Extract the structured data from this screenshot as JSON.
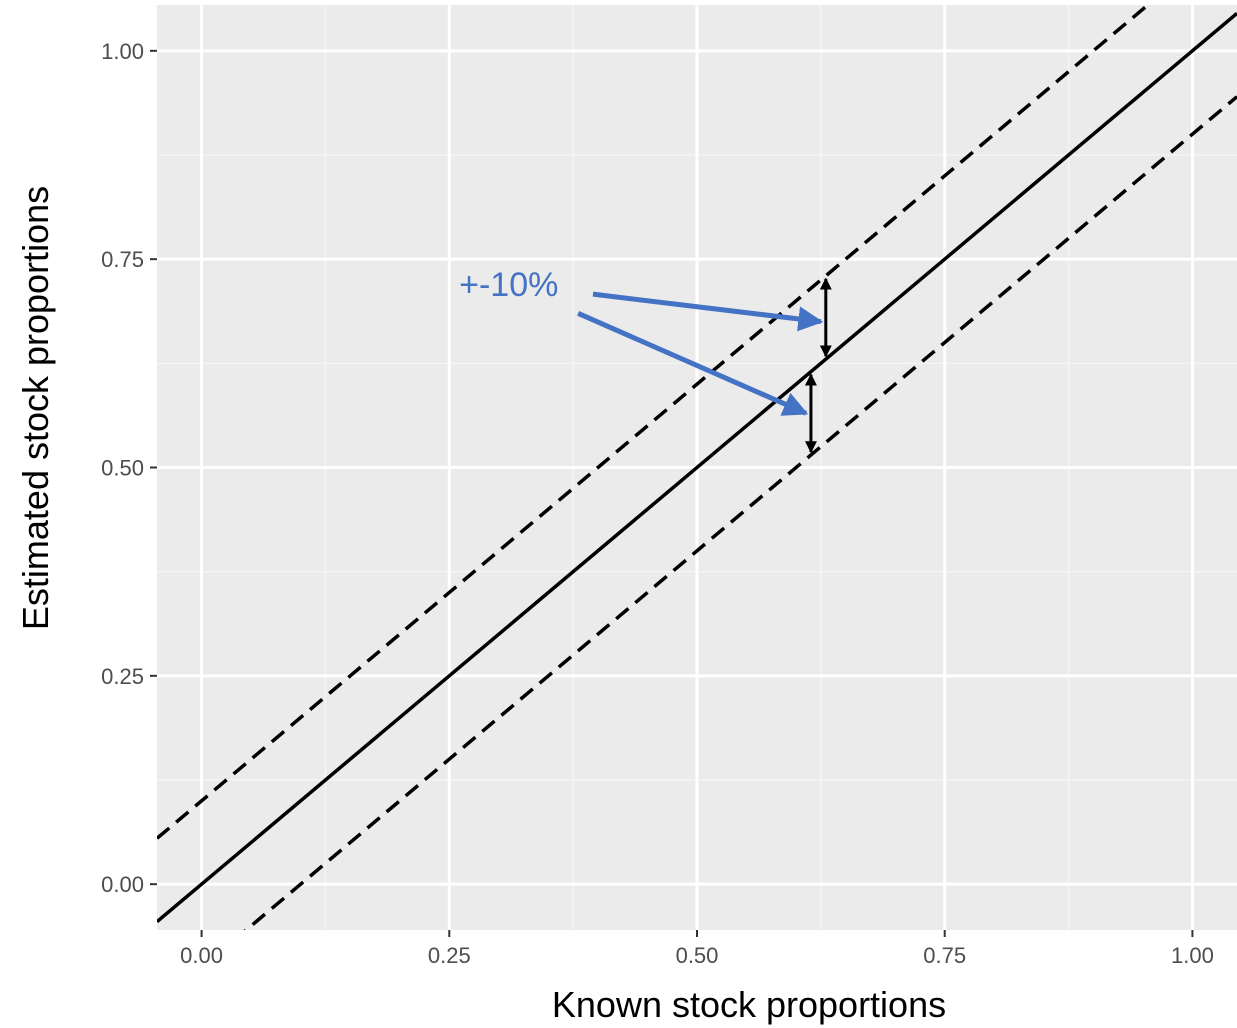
{
  "chart_data": {
    "type": "line",
    "title": "",
    "xlabel": "Known stock proportions",
    "ylabel": "Estimated stock proportions",
    "xlim": [
      -0.045,
      1.045
    ],
    "ylim": [
      -0.055,
      1.055
    ],
    "x_ticks": [
      0.0,
      0.25,
      0.5,
      0.75,
      1.0
    ],
    "x_tick_labels": [
      "0.00",
      "0.25",
      "0.50",
      "0.75",
      "1.00"
    ],
    "y_ticks": [
      0.0,
      0.25,
      0.5,
      0.75,
      1.0
    ],
    "y_tick_labels": [
      "0.00",
      "0.25",
      "0.50",
      "0.75",
      "1.00"
    ],
    "grid": true,
    "background": "#ebebeb",
    "series": [
      {
        "x": [
          -0.045,
          1.045
        ],
        "y": [
          -0.045,
          1.045
        ],
        "style": "solid",
        "color": "#000000"
      },
      {
        "x": [
          -0.045,
          1.045
        ],
        "y": [
          0.055,
          1.145
        ],
        "style": "dashed",
        "color": "#000000"
      },
      {
        "x": [
          -0.045,
          1.045
        ],
        "y": [
          -0.145,
          0.945
        ],
        "style": "dashed",
        "color": "#000000"
      }
    ],
    "annotations": {
      "label": "+-10%",
      "color": "#4472c4",
      "label_at": {
        "x": 0.31,
        "y": 0.72
      },
      "upper_interval": {
        "x": 0.63,
        "y_from": 0.73,
        "y_to": 0.63
      },
      "lower_interval": {
        "x": 0.615,
        "y_from": 0.615,
        "y_to": 0.515
      },
      "arrow_targets": [
        {
          "x": 0.625,
          "y": 0.675
        },
        {
          "x": 0.61,
          "y": 0.565
        }
      ],
      "arrow_starts": [
        {
          "x": 0.395,
          "y": 0.708
        },
        {
          "x": 0.38,
          "y": 0.685
        }
      ]
    }
  }
}
